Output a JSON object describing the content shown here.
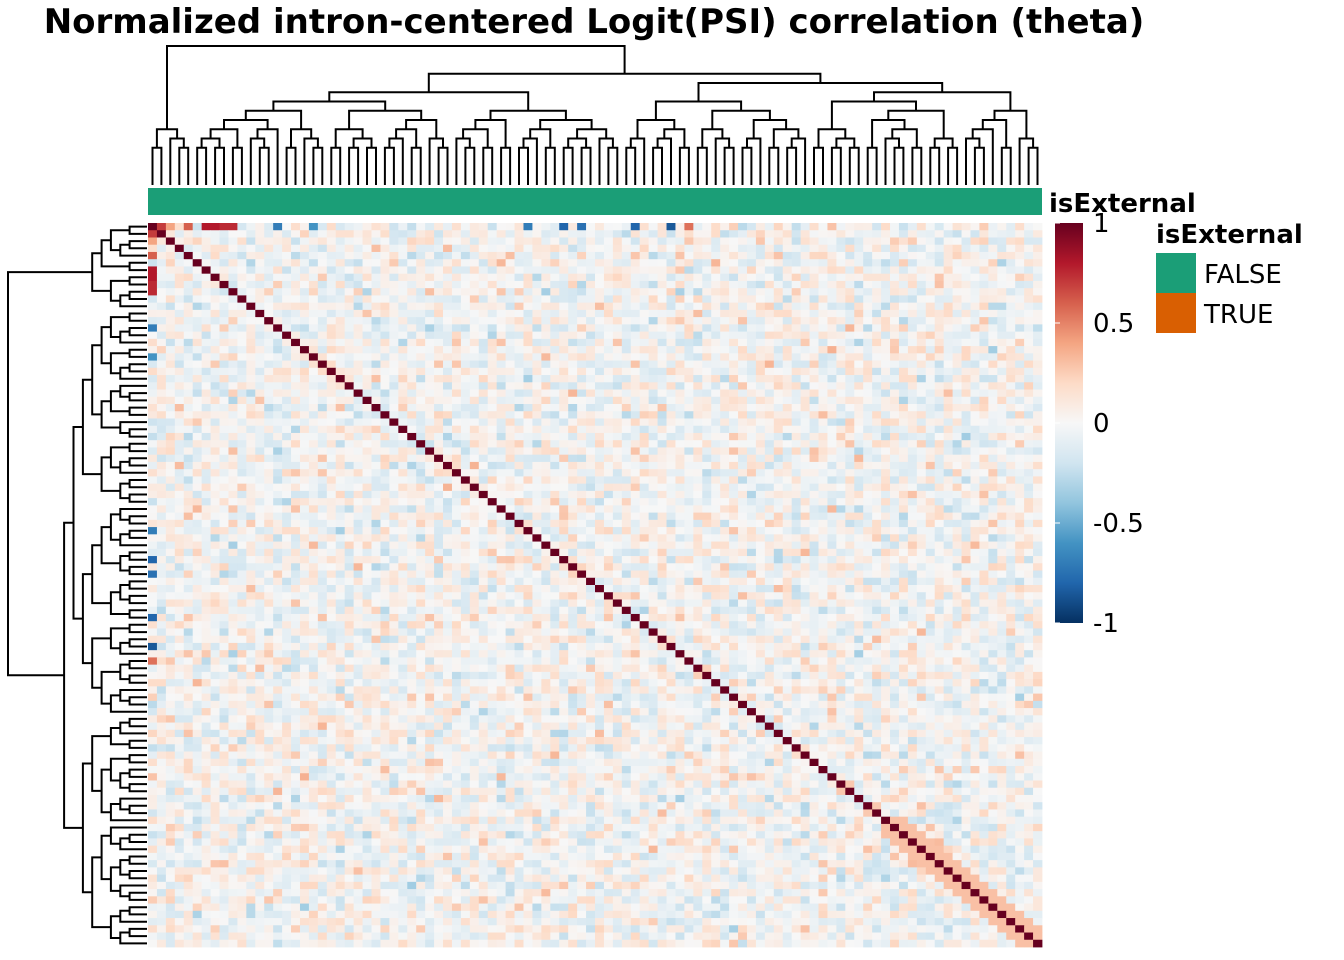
{
  "chart_data": {
    "type": "heatmap",
    "title": "Normalized intron-centered Logit(PSI) correlation (theta)",
    "n": 100,
    "value_range": [
      -1,
      1
    ],
    "diagonal_value": 1,
    "row_dendrogram": true,
    "column_dendrogram": true,
    "column_annotation": {
      "name": "isExternal",
      "values": "all FALSE",
      "legend_title": "isExternal",
      "levels": [
        {
          "label": "FALSE",
          "color": "#1B9E77"
        },
        {
          "label": "TRUE",
          "color": "#D95F02"
        }
      ]
    },
    "color_scale": {
      "legend_title": "",
      "ticks": [
        {
          "value": 1,
          "label": "1"
        },
        {
          "value": 0.5,
          "label": "0.5"
        },
        {
          "value": 0,
          "label": "0"
        },
        {
          "value": -0.5,
          "label": "-0.5"
        },
        {
          "value": -1,
          "label": "-1"
        }
      ],
      "stops": [
        "#053061",
        "#2166AC",
        "#4393C3",
        "#92C5DE",
        "#D1E5F0",
        "#F7F7F7",
        "#FDDBC7",
        "#F4A582",
        "#D6604D",
        "#B2182B",
        "#67001F"
      ]
    },
    "notable_correlations": [
      {
        "row": 1,
        "col": 2,
        "value": 0.7
      },
      {
        "row": 1,
        "col": 5,
        "value": 0.6
      },
      {
        "row": 1,
        "col": 9,
        "value": 0.75
      },
      {
        "row": 1,
        "col": 10,
        "value": 0.75
      },
      {
        "row": 1,
        "col": 47,
        "value": -0.8
      },
      {
        "row": 1,
        "col": 59,
        "value": -0.85
      },
      {
        "row": 1,
        "col": 61,
        "value": 0.55
      },
      {
        "row": 3,
        "col": 1,
        "value": 0.4
      },
      {
        "row": 7,
        "col": 1,
        "value": 0.8
      },
      {
        "row": 8,
        "col": 1,
        "value": 0.8
      },
      {
        "row": 15,
        "col": 1,
        "value": -0.7
      },
      {
        "row": 19,
        "col": 1,
        "value": -0.6
      },
      {
        "row": 43,
        "col": 1,
        "value": -0.7
      },
      {
        "row": 49,
        "col": 1,
        "value": -0.75
      },
      {
        "row": 55,
        "col": 1,
        "value": -0.8
      }
    ]
  }
}
